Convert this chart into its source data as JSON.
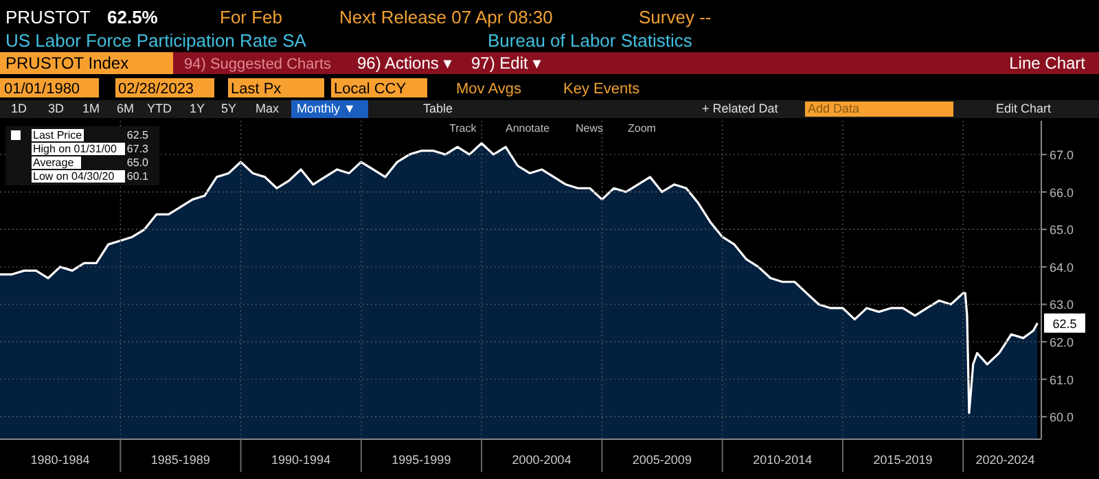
{
  "chart_data": {
    "type": "area",
    "title": "US Labor Force Participation Rate SA",
    "annotations": [
      "PRUSTOT",
      "62.5%",
      "For Feb",
      "Next Release 07 Apr 08:30",
      "Survey --",
      "Bureau of Labor Statistics",
      "PRUSTOT Index",
      "94) Suggested Charts",
      "96) Actions ▾",
      "97) Edit ▾",
      "Line Chart",
      "01/01/1980",
      "02/28/2023",
      "Last Px",
      "Local CCY",
      "Mov Avgs",
      "Key Events",
      "1D",
      "3D",
      "1M",
      "6M",
      "YTD",
      "1Y",
      "5Y",
      "Max",
      "Monthly ▼",
      "Table",
      "+ Related Dat",
      "Add Data",
      "Edit Chart",
      "Track",
      "Annotate",
      "News",
      "Zoom",
      "62.5",
      "High on 01/31/00",
      "67.3",
      "Average",
      "65.0",
      "Low on 04/30/20",
      "60.1",
      {
        "text": "62.5",
        "x": "2023-02",
        "y": 62.5
      }
    ],
    "x": [
      "1980-01",
      "1980-07",
      "1981-01",
      "1981-07",
      "1982-01",
      "1982-07",
      "1983-01",
      "1983-07",
      "1984-01",
      "1984-07",
      "1985-01",
      "1985-07",
      "1986-01",
      "1986-07",
      "1987-01",
      "1987-07",
      "1988-01",
      "1988-07",
      "1989-01",
      "1989-07",
      "1990-01",
      "1990-07",
      "1991-01",
      "1991-07",
      "1992-01",
      "1992-07",
      "1993-01",
      "1993-07",
      "1994-01",
      "1994-07",
      "1995-01",
      "1995-07",
      "1996-01",
      "1996-07",
      "1997-01",
      "1997-07",
      "1998-01",
      "1998-07",
      "1999-01",
      "1999-07",
      "2000-01",
      "2000-07",
      "2001-01",
      "2001-07",
      "2002-01",
      "2002-07",
      "2003-01",
      "2003-07",
      "2004-01",
      "2004-07",
      "2005-01",
      "2005-07",
      "2006-01",
      "2006-07",
      "2007-01",
      "2007-07",
      "2008-01",
      "2008-07",
      "2009-01",
      "2009-07",
      "2010-01",
      "2010-07",
      "2011-01",
      "2011-07",
      "2012-01",
      "2012-07",
      "2013-01",
      "2013-07",
      "2014-01",
      "2014-07",
      "2015-01",
      "2015-07",
      "2016-01",
      "2016-07",
      "2017-01",
      "2017-07",
      "2018-01",
      "2018-07",
      "2019-01",
      "2019-07",
      "2020-01",
      "2020-02",
      "2020-03",
      "2020-04",
      "2020-06",
      "2020-08",
      "2021-01",
      "2021-07",
      "2022-01",
      "2022-07",
      "2022-12",
      "2023-02"
    ],
    "series": [
      {
        "name": "Last Price",
        "color": "#ffffff",
        "values": [
          63.8,
          63.8,
          63.9,
          63.9,
          63.7,
          64.0,
          63.9,
          64.1,
          64.1,
          64.6,
          64.7,
          64.8,
          65.0,
          65.4,
          65.4,
          65.6,
          65.8,
          65.9,
          66.4,
          66.5,
          66.8,
          66.5,
          66.4,
          66.1,
          66.3,
          66.6,
          66.2,
          66.4,
          66.6,
          66.5,
          66.8,
          66.6,
          66.4,
          66.8,
          67.0,
          67.1,
          67.1,
          67.0,
          67.2,
          67.0,
          67.3,
          67.0,
          67.2,
          66.7,
          66.5,
          66.6,
          66.4,
          66.2,
          66.1,
          66.1,
          65.8,
          66.1,
          66.0,
          66.2,
          66.4,
          66.0,
          66.2,
          66.1,
          65.7,
          65.2,
          64.8,
          64.6,
          64.2,
          64.0,
          63.7,
          63.6,
          63.6,
          63.3,
          63.0,
          62.9,
          62.9,
          62.6,
          62.9,
          62.8,
          62.9,
          62.9,
          62.7,
          62.9,
          63.1,
          63.0,
          63.3,
          63.3,
          62.7,
          60.1,
          61.4,
          61.7,
          61.4,
          61.7,
          62.2,
          62.1,
          62.3,
          62.5
        ]
      }
    ],
    "xlim": [
      "1980-01",
      "2023-04"
    ],
    "xticks": [
      {
        "value": "1982-07",
        "label": "1980-1984"
      },
      {
        "value": "1985-01",
        "label": null
      },
      {
        "value": "1987-07",
        "label": "1985-1989"
      },
      {
        "value": "1990-01",
        "label": null
      },
      {
        "value": "1992-07",
        "label": "1990-1994"
      },
      {
        "value": "1995-01",
        "label": null
      },
      {
        "value": "1997-07",
        "label": "1995-1999"
      },
      {
        "value": "2000-01",
        "label": null
      },
      {
        "value": "2002-07",
        "label": "2000-2004"
      },
      {
        "value": "2005-01",
        "label": null
      },
      {
        "value": "2007-07",
        "label": "2005-2009"
      },
      {
        "value": "2010-01",
        "label": null
      },
      {
        "value": "2012-07",
        "label": "2010-2014"
      },
      {
        "value": "2015-01",
        "label": null
      },
      {
        "value": "2017-07",
        "label": "2015-2019"
      },
      {
        "value": "2020-01",
        "label": null
      },
      {
        "value": "2021-10",
        "label": "2020-2024"
      }
    ],
    "ylim": [
      59.4,
      67.9
    ],
    "yticks": [
      {
        "value": 60,
        "label": "60.0"
      },
      {
        "value": 61,
        "label": "61.0"
      },
      {
        "value": 62,
        "label": "62.0"
      },
      {
        "value": 63,
        "label": "63.0"
      },
      {
        "value": 64,
        "label": "64.0"
      },
      {
        "value": 65,
        "label": "65.0"
      },
      {
        "value": 66,
        "label": "66.0"
      },
      {
        "value": 67,
        "label": "67.0"
      }
    ],
    "grid": true,
    "legend": "top left"
  }
}
